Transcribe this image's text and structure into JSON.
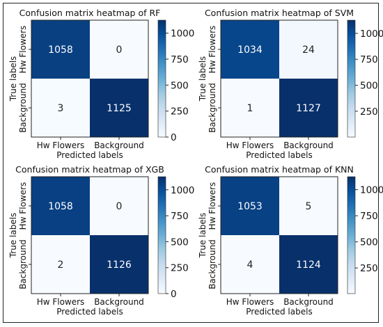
{
  "chart_data": [
    {
      "type": "heatmap",
      "title": "Confusion matrix heatmap of RF",
      "xlabel": "Predicted labels",
      "ylabel": "True labels",
      "x_categories": [
        "Hw Flowers",
        "Background"
      ],
      "y_categories": [
        "Hw Flowers",
        "Background"
      ],
      "values": [
        [
          1058,
          0
        ],
        [
          3,
          1125
        ]
      ],
      "colorbar": {
        "ticks": [
          0,
          250,
          500,
          750,
          1000
        ],
        "range": [
          0,
          1125
        ],
        "colormap": "Blues"
      }
    },
    {
      "type": "heatmap",
      "title": "Confusion matrix heatmap of SVM",
      "xlabel": "Predicted labels",
      "ylabel": "True labels",
      "x_categories": [
        "Hw Flowers",
        "Background"
      ],
      "y_categories": [
        "Hw Flowers",
        "Background"
      ],
      "values": [
        [
          1034,
          24
        ],
        [
          1,
          1127
        ]
      ],
      "colorbar": {
        "ticks": [
          250,
          500,
          750,
          1000
        ],
        "range": [
          1,
          1127
        ],
        "colormap": "Blues"
      }
    },
    {
      "type": "heatmap",
      "title": "Confusion matrix heatmap of XGB",
      "xlabel": "Predicted labels",
      "ylabel": "True labels",
      "x_categories": [
        "Hw Flowers",
        "Background"
      ],
      "y_categories": [
        "Hw Flowers",
        "Background"
      ],
      "values": [
        [
          1058,
          0
        ],
        [
          2,
          1126
        ]
      ],
      "colorbar": {
        "ticks": [
          0,
          250,
          500,
          750,
          1000
        ],
        "range": [
          0,
          1126
        ],
        "colormap": "Blues"
      }
    },
    {
      "type": "heatmap",
      "title": "Confusion matrix heatmap of KNN",
      "xlabel": "Predicted labels",
      "ylabel": "True labels",
      "x_categories": [
        "Hw Flowers",
        "Background"
      ],
      "y_categories": [
        "Hw Flowers",
        "Background"
      ],
      "values": [
        [
          1053,
          5
        ],
        [
          4,
          1124
        ]
      ],
      "colorbar": {
        "ticks": [
          250,
          500,
          750,
          1000
        ],
        "range": [
          4,
          1124
        ],
        "colormap": "Blues"
      }
    }
  ]
}
